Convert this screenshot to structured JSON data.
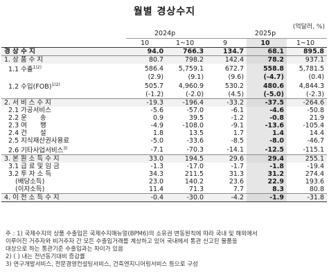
{
  "title": "월별 경상수지",
  "unit": "(억달러, %)",
  "header": {
    "year1": "2024p",
    "year2": "2025p",
    "cols": [
      "10",
      "1~10",
      "9",
      "10",
      "1~10"
    ]
  },
  "rows": [
    {
      "label": "경 상 수 지",
      "vals": [
        "94.0",
        "766.3",
        "134.7",
        "68.1",
        "895.8"
      ],
      "bold": true,
      "shade": true
    },
    {
      "label": "1. 상 품 수 지",
      "vals": [
        "80.7",
        "798.2",
        "142.4",
        "78.2",
        "937.1"
      ],
      "shade": true,
      "sep": true
    },
    {
      "label": "1.1 수출",
      "sup": "1)2)",
      "vals": [
        "586.4",
        "5,759.1",
        "672.7",
        "558.8",
        "5,781.5"
      ],
      "indent": 1
    },
    {
      "label": "",
      "vals": [
        "(2.9)",
        "(9.1)",
        "(9.6)",
        "(-4.7)",
        "(0.4)"
      ]
    },
    {
      "label": "1.2 수입(FOB)",
      "sup": "1)2)",
      "vals": [
        "505.7",
        "4,960.9",
        "530.2",
        "480.6",
        "4,844.3"
      ],
      "indent": 1
    },
    {
      "label": "",
      "vals": [
        "(-1.2)",
        "(-2.0)",
        "(4.5)",
        "(-5.0)",
        "(-2.3)"
      ]
    },
    {
      "label": "2. 서 비 스 수 지",
      "vals": [
        "-19.3",
        "-196.4",
        "-33.2",
        "-37.5",
        "-264.6"
      ],
      "shade": true,
      "sep": true
    },
    {
      "label": "2.1 가공서비스",
      "vals": [
        "-5.6",
        "-57.0",
        "-6.1",
        "-4.6",
        "-50.8"
      ],
      "indent": 1
    },
    {
      "label": "2.2 운　　송",
      "vals": [
        "0.9",
        "39.5",
        "-1.2",
        "-0.8",
        "21.9"
      ],
      "indent": 1
    },
    {
      "label": "2.3 여　　행",
      "vals": [
        "-4.9",
        "-108.0",
        "-9.1",
        "-13.6",
        "-105.4"
      ],
      "indent": 1
    },
    {
      "label": "2.4 건　　설",
      "vals": [
        "1.8",
        "13.5",
        "1.7",
        "1.4",
        "14.4"
      ],
      "indent": 1
    },
    {
      "label": "2.5 지식재산권사용료",
      "vals": [
        "-5.0",
        "-33.6",
        "-8.5",
        "-8.0",
        "-46.7"
      ],
      "indent": 1
    },
    {
      "label": "2.6 기타사업서비스",
      "sup": "3)",
      "vals": [
        "-7.1",
        "-70.3",
        "-14.1",
        "-12.5",
        "-115.1"
      ],
      "indent": 1
    },
    {
      "label": "3. 본 원 소 득 수 지",
      "vals": [
        "33.0",
        "194.5",
        "29.6",
        "29.4",
        "255.1"
      ],
      "shade": true,
      "sep": true
    },
    {
      "label": "3.1 급 료 및 임 금",
      "vals": [
        "-1.3",
        "-17.0",
        "-1.7",
        "-1.8",
        "-19.4"
      ],
      "indent": 1
    },
    {
      "label": "3.2 투 자 소 득",
      "vals": [
        "34.3",
        "211.5",
        "31.3",
        "31.2",
        "274.4"
      ],
      "indent": 1
    },
    {
      "label": "(배당소득)",
      "vals": [
        "23.0",
        "140.2",
        "23.6",
        "22.9",
        "193.6"
      ],
      "indent": 2
    },
    {
      "label": "(이자소득)",
      "vals": [
        "11.4",
        "71.3",
        "7.7",
        "8.3",
        "80.8"
      ],
      "indent": 2
    },
    {
      "label": "4. 이 전 소 득 수 지",
      "vals": [
        "-0.4",
        "-30.0",
        "-4.2",
        "-1.9",
        "-31.8"
      ],
      "shade": true,
      "sep": true,
      "last": true
    }
  ],
  "notes": [
    "주 : 1) 국제수지의 상품 수출입은 국제수지매뉴얼(BPM6)의 소유권 변동원칙에 따라 국내 및 해외에서",
    "       이루어진 거주자와 비거주자 간 모든 수출입거래를 계상하고 있어 국내에서 통관 신고된 물품을",
    "       대상으로 하는 통관기준 수출입과는 차이가 있음",
    "   2) ( ) 내는 전년동기대비 증감률",
    "   3) 연구개발서비스, 전문경영컨설팅서비스, 건축엔지니어링서비스 등으로 구성"
  ]
}
